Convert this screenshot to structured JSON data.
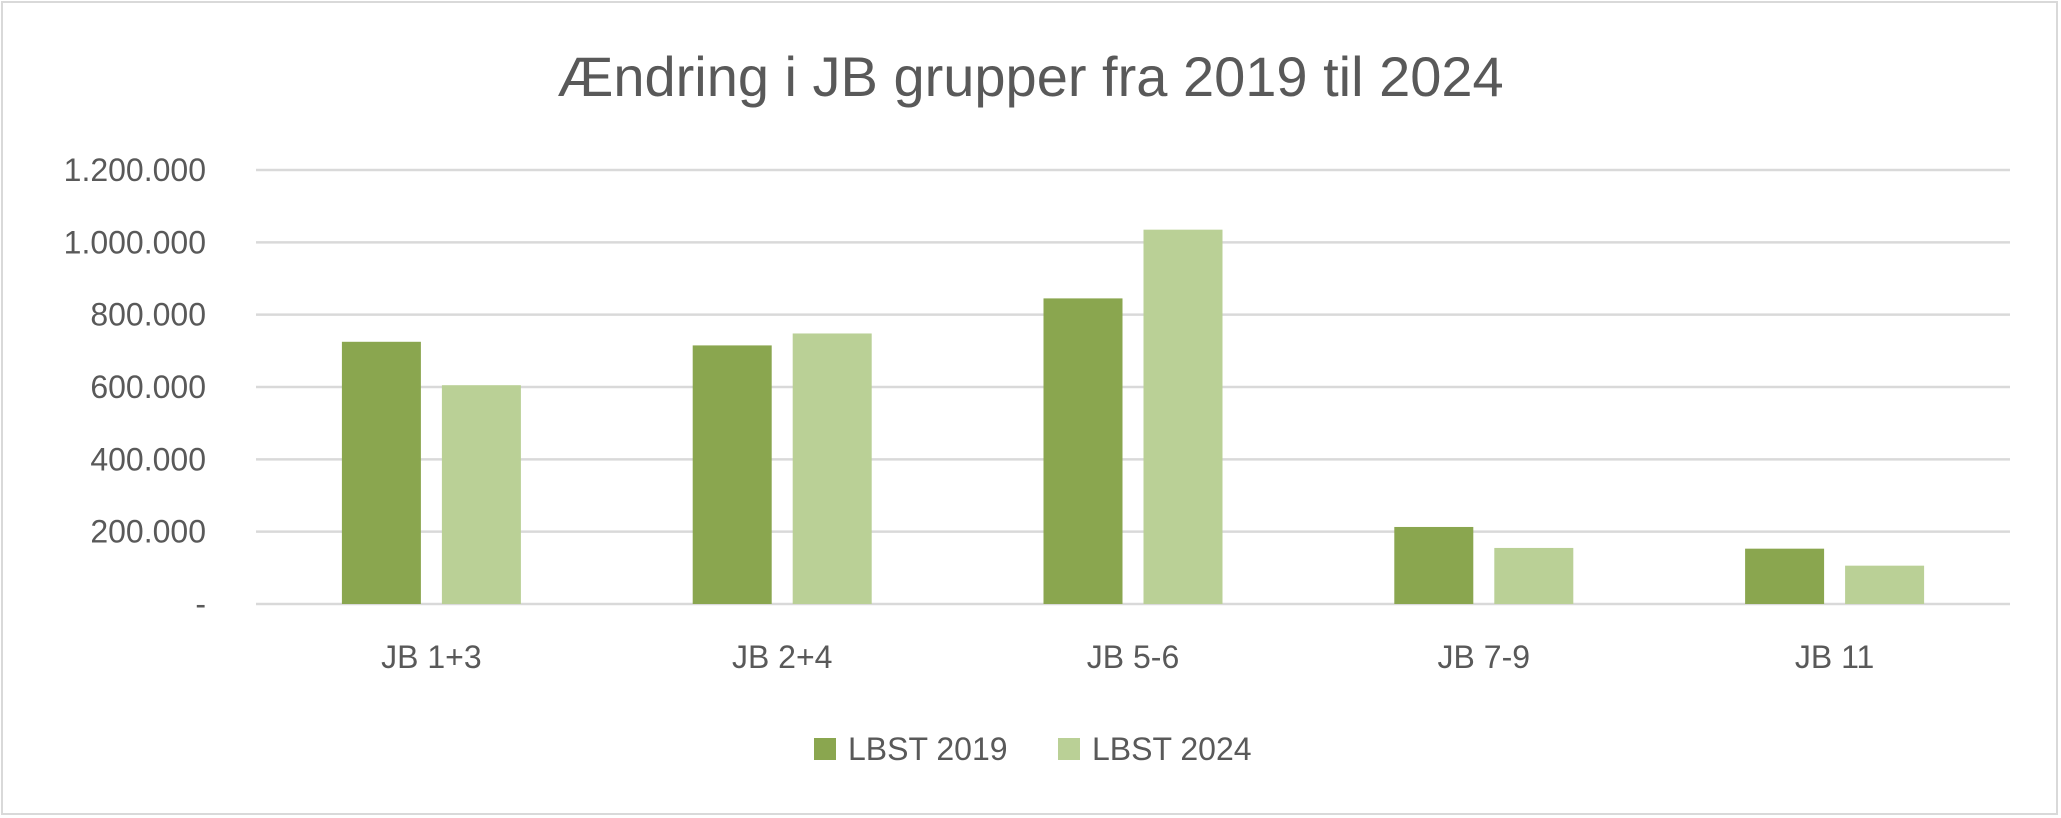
{
  "chart_data": {
    "type": "bar",
    "title": "Ændring i JB grupper fra 2019 til 2024",
    "xlabel": "",
    "ylabel": "",
    "categories": [
      "JB 1+3",
      "JB 2+4",
      "JB 5-6",
      "JB 7-9",
      "JB 11"
    ],
    "series": [
      {
        "name": "LBST 2019",
        "color": "#8aa64f",
        "values": [
          725000,
          715000,
          845000,
          213000,
          153000
        ]
      },
      {
        "name": "LBST 2024",
        "color": "#bad096",
        "values": [
          605000,
          748000,
          1035000,
          155000,
          106000
        ]
      }
    ],
    "ylim": [
      0,
      1200000
    ],
    "yticks": [
      0,
      200000,
      400000,
      600000,
      800000,
      1000000,
      1200000
    ],
    "ytick_labels": [
      "-",
      "200.000",
      "400.000",
      "600.000",
      "800.000",
      "1.000.000",
      "1.200.000"
    ],
    "grid": true,
    "legend": "bottom-center",
    "colors": {
      "grid": "#d9d9d9",
      "text": "#595959",
      "frame": "#d9d9d9"
    }
  }
}
